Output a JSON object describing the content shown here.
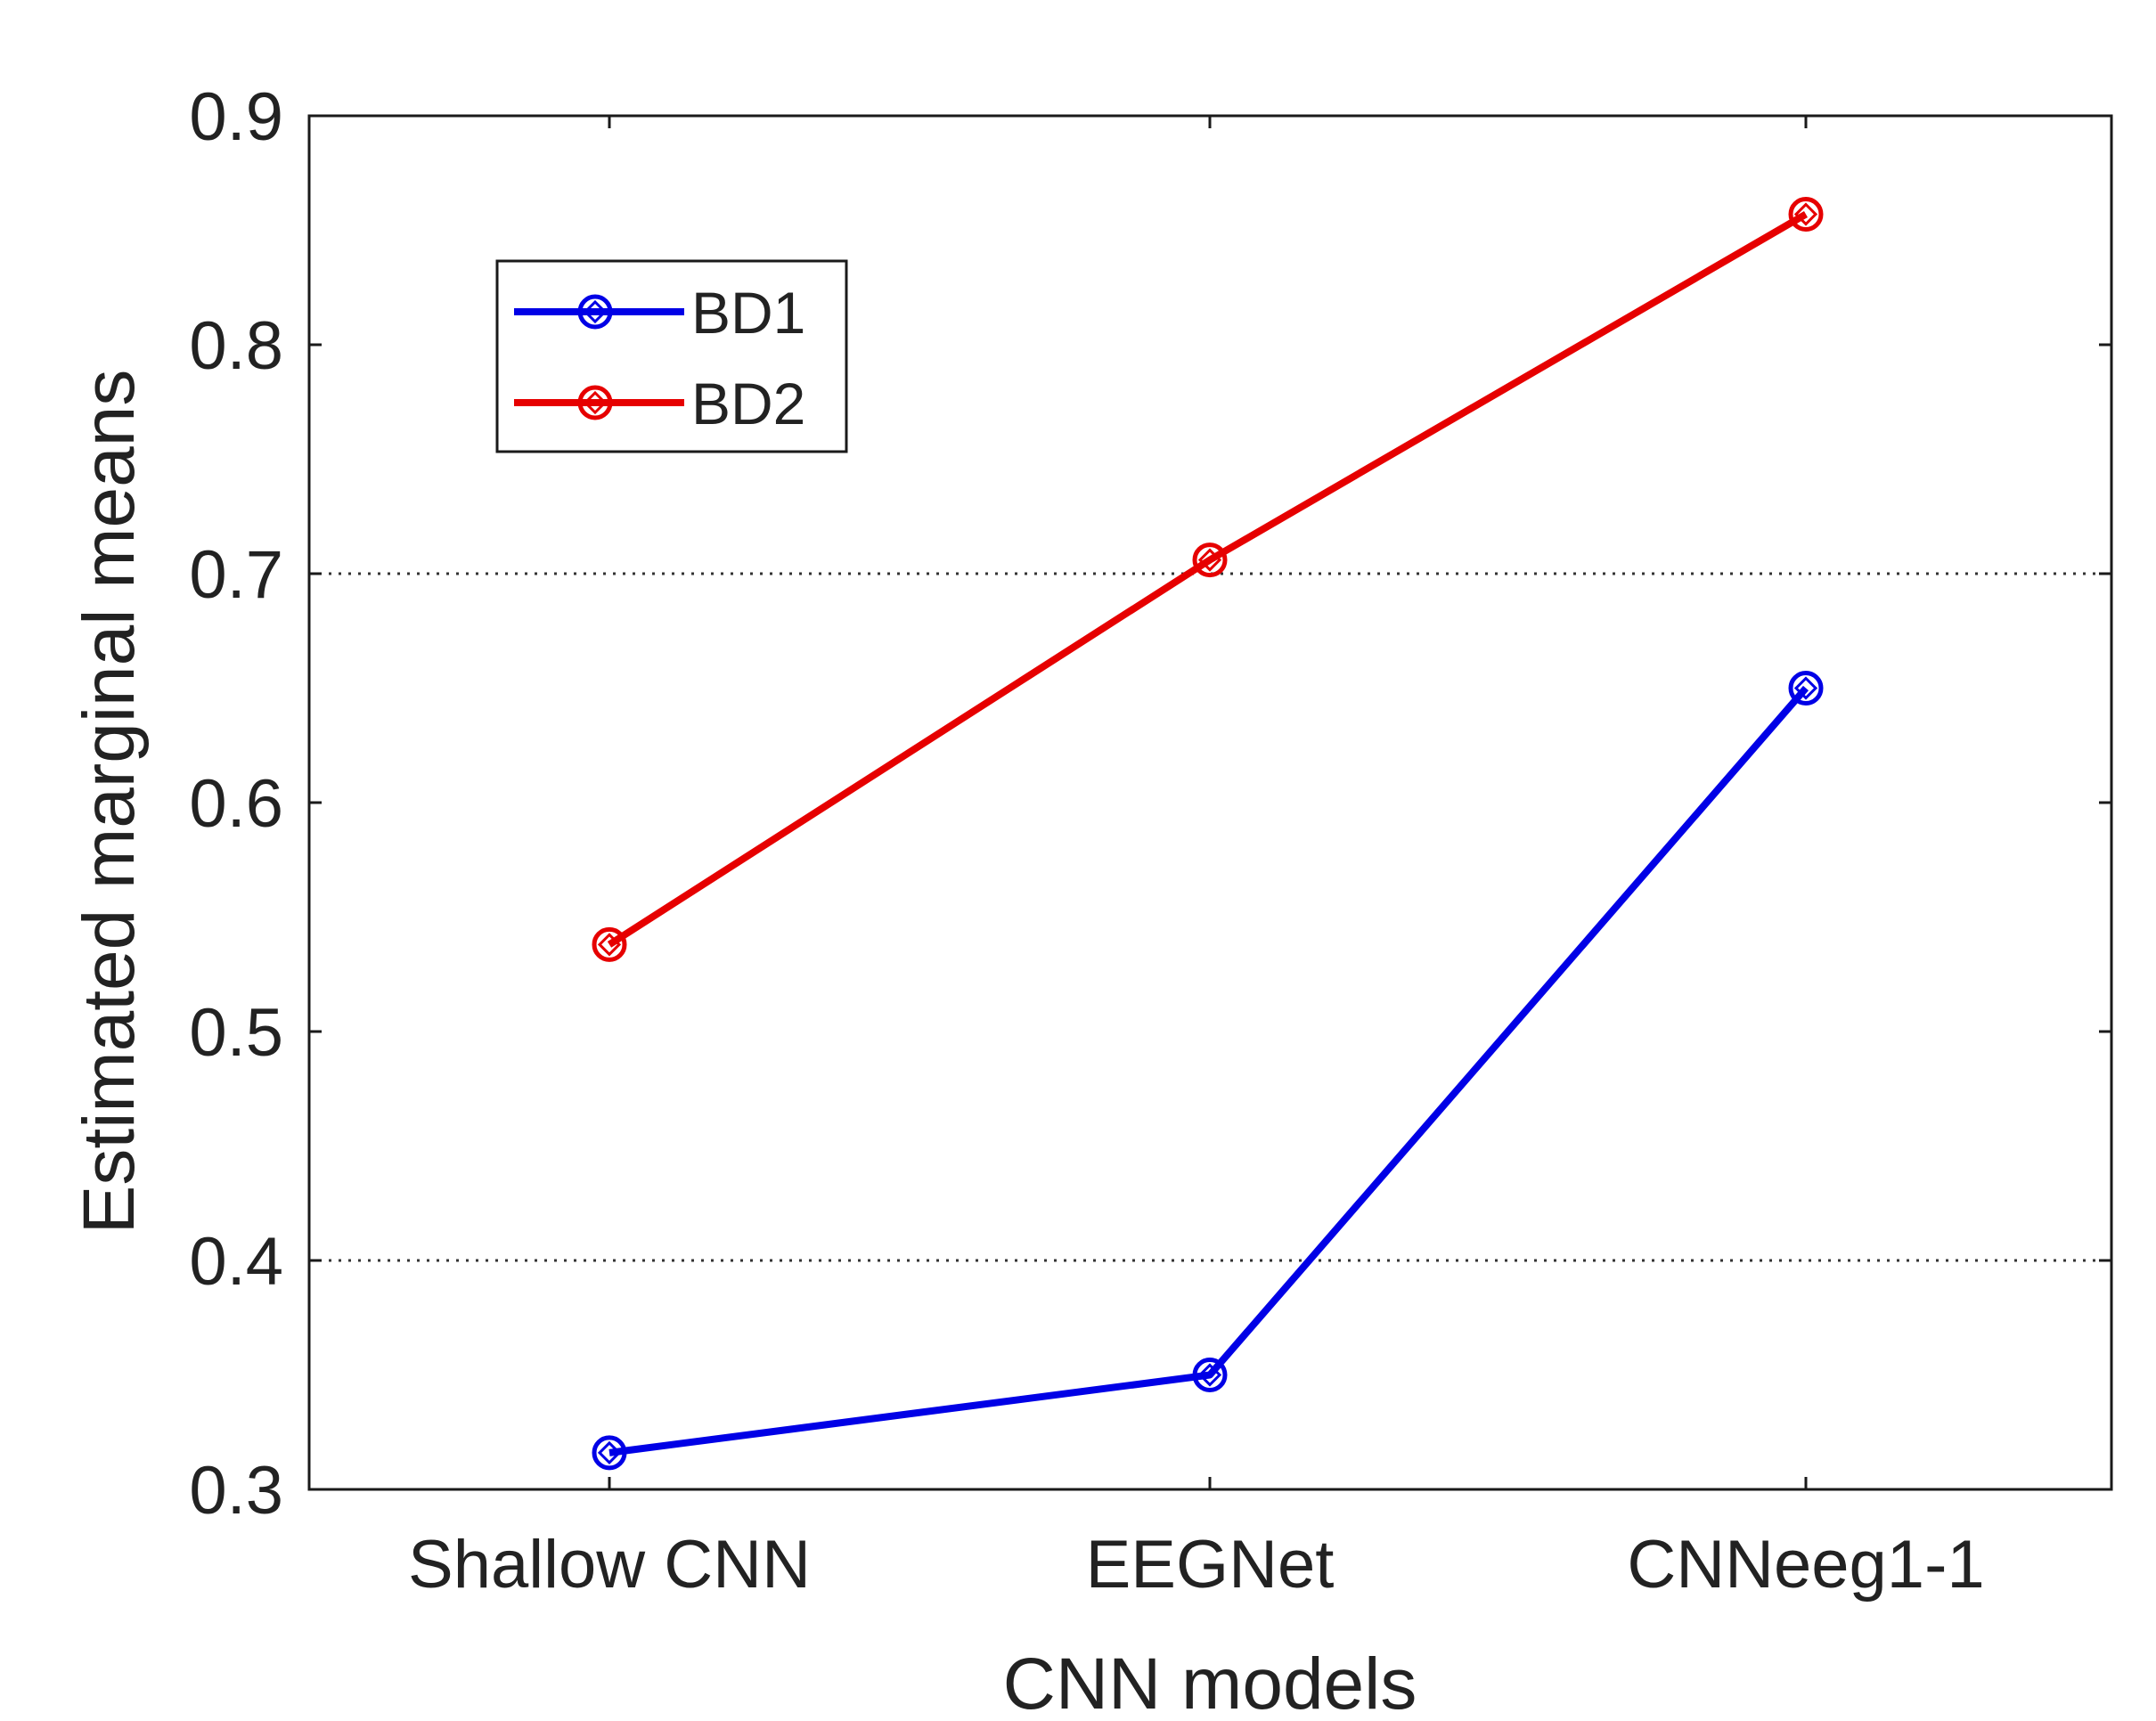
{
  "chart_data": {
    "type": "line",
    "title": "",
    "xlabel": "CNN models",
    "ylabel": "Estimated marginal means",
    "categories": [
      "Shallow CNN",
      "EEGNet",
      "CNNeeg1-1"
    ],
    "ylim": [
      0.3,
      0.9
    ],
    "yticks": [
      0.3,
      0.4,
      0.5,
      0.6,
      0.7,
      0.8,
      0.9
    ],
    "ytick_labels": [
      "0.3",
      "0.4",
      "0.5",
      "0.6",
      "0.7",
      "0.8",
      "0.9"
    ],
    "reference_lines": [
      0.4,
      0.7
    ],
    "grid": false,
    "legend_position": "top-left",
    "series": [
      {
        "name": "BD1",
        "color": "#0000e6",
        "marker": "circle-diamond",
        "values": [
          0.316,
          0.35,
          0.65
        ]
      },
      {
        "name": "BD2",
        "color": "#e60000",
        "marker": "circle-diamond",
        "values": [
          0.538,
          0.706,
          0.857
        ]
      }
    ]
  }
}
